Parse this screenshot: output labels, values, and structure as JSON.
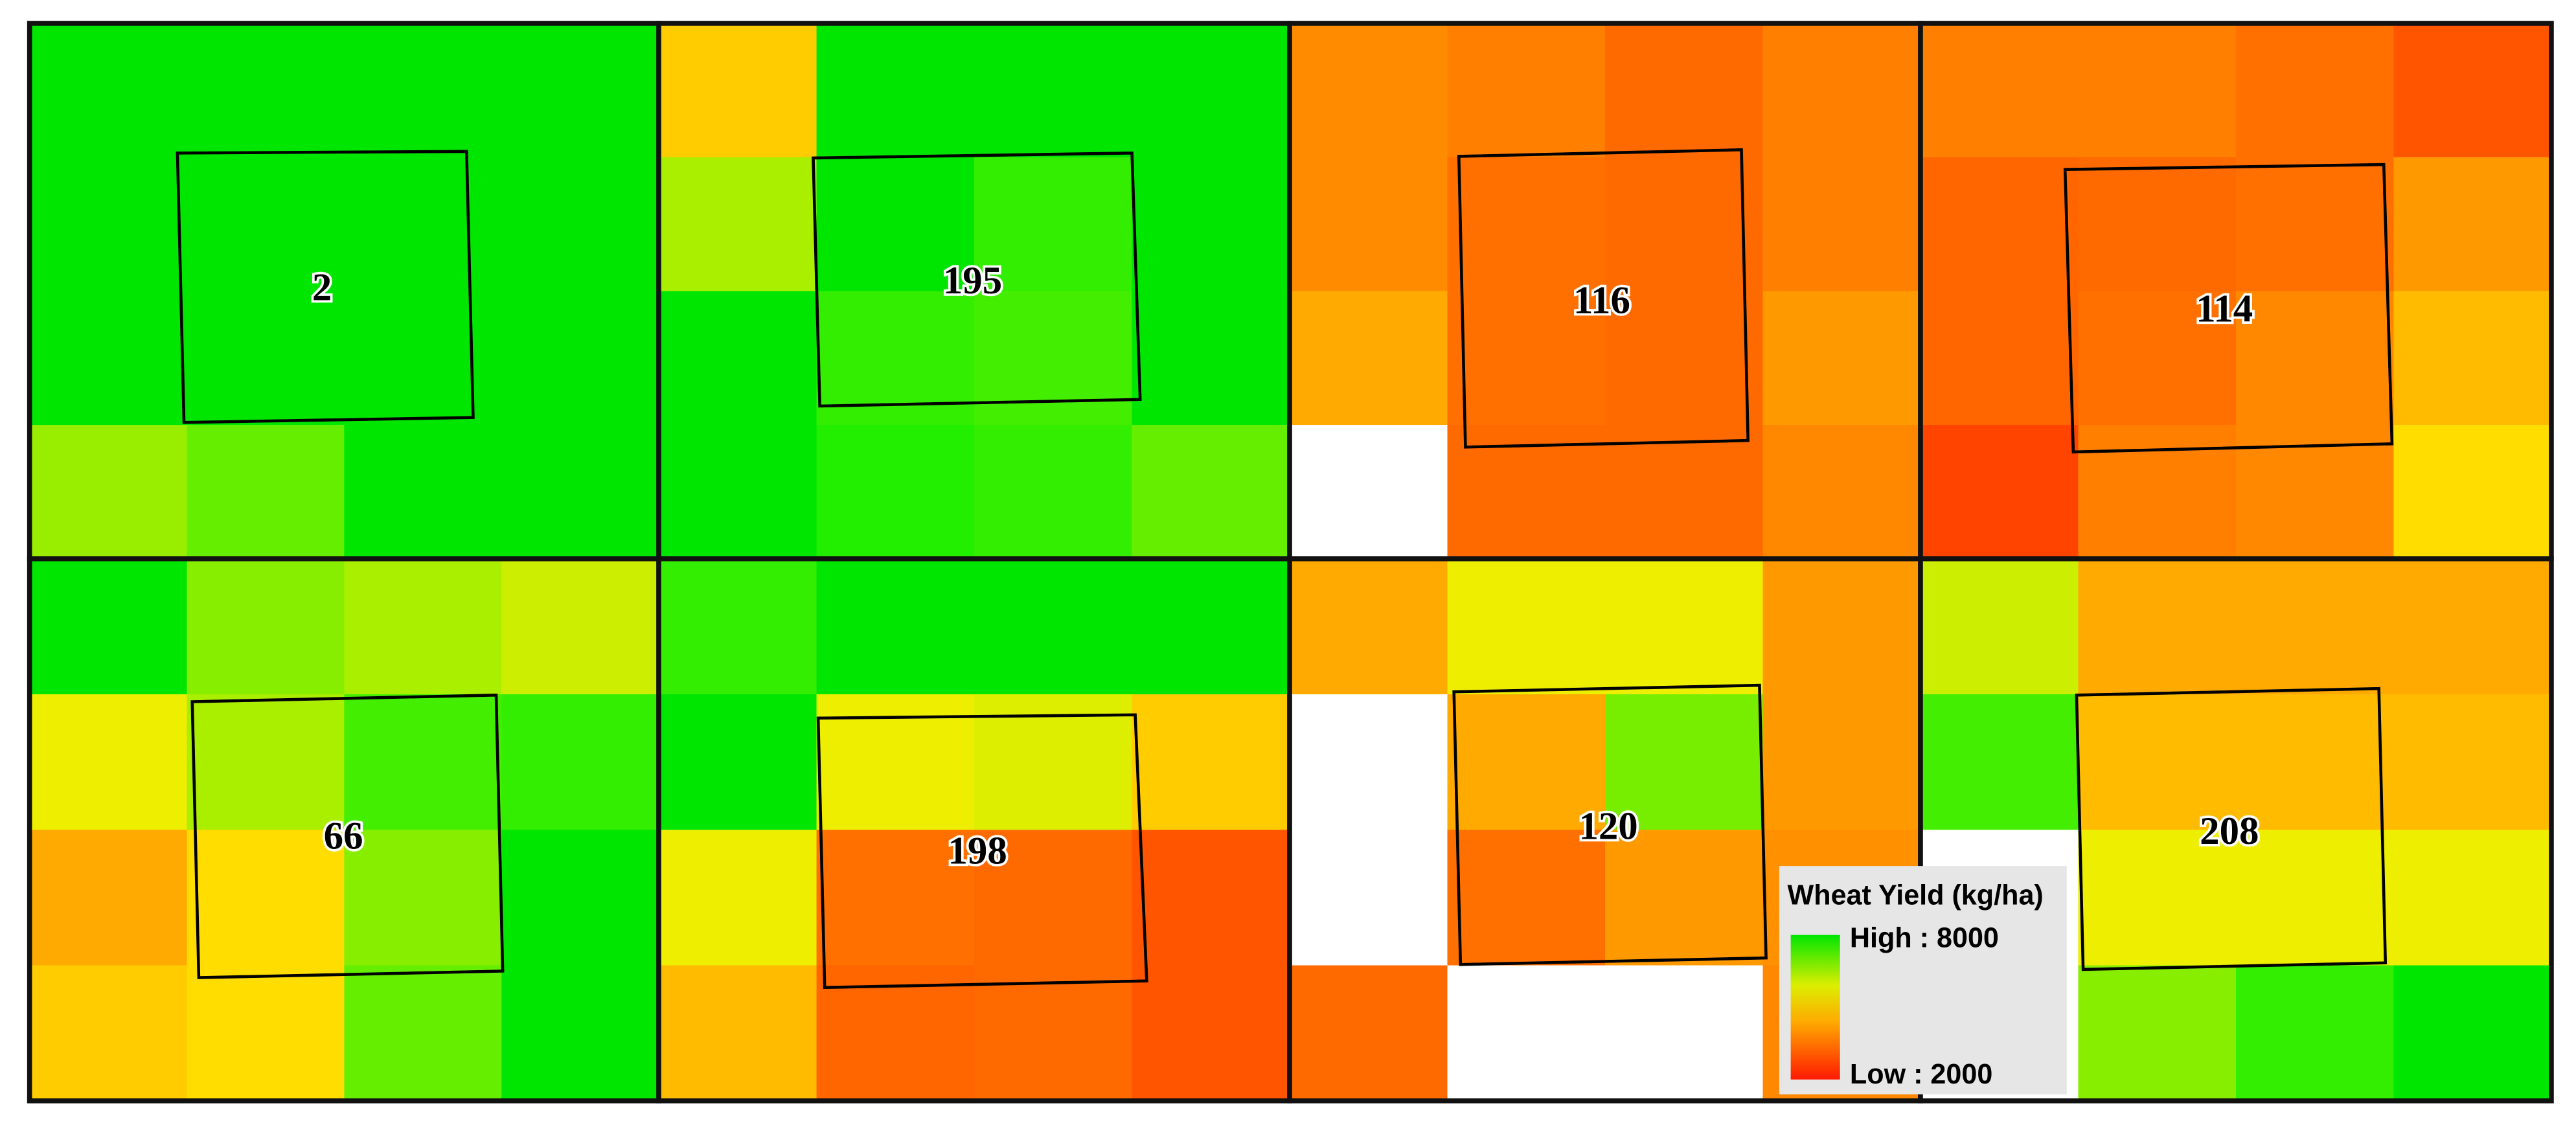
{
  "panels": [
    {
      "label": 2
    },
    {
      "label": 195
    },
    {
      "label": 116
    },
    {
      "label": 114
    },
    {
      "label": 66
    },
    {
      "label": 198
    },
    {
      "label": 120
    },
    {
      "label": 208
    }
  ],
  "legend": {
    "title": "Wheat Yield (kg/ha)",
    "high": "High : 8000",
    "low": "Low : 2000"
  }
}
